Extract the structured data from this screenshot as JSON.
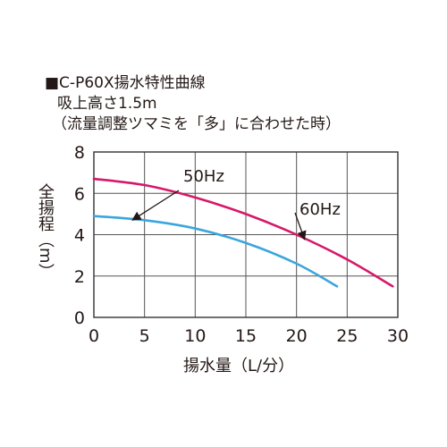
{
  "title": {
    "line1": "■C-P60X揚水特性曲線",
    "line2": "吸上高さ1.5m",
    "line3": "（流量調整ツマミを「多」に合わせた時）"
  },
  "chart_data": {
    "type": "line",
    "xlabel": "揚水量（L/分）",
    "ylabel": "全揚程（m）",
    "xlim": [
      0,
      30
    ],
    "ylim": [
      0,
      8
    ],
    "xticks": [
      "0",
      "5",
      "10",
      "15",
      "20",
      "25",
      "30"
    ],
    "yticks": [
      "0",
      "2",
      "4",
      "6",
      "8"
    ],
    "grid": true,
    "series": [
      {
        "name": "50Hz",
        "color": "#3aa6dd",
        "x": [
          0,
          5,
          10,
          15,
          20,
          24
        ],
        "y": [
          4.9,
          4.7,
          4.3,
          3.6,
          2.6,
          1.5
        ]
      },
      {
        "name": "60Hz",
        "color": "#d6186a",
        "x": [
          0,
          5,
          10,
          15,
          20,
          25,
          29.5
        ],
        "y": [
          6.7,
          6.4,
          5.8,
          5.0,
          4.0,
          2.8,
          1.5
        ]
      }
    ]
  }
}
